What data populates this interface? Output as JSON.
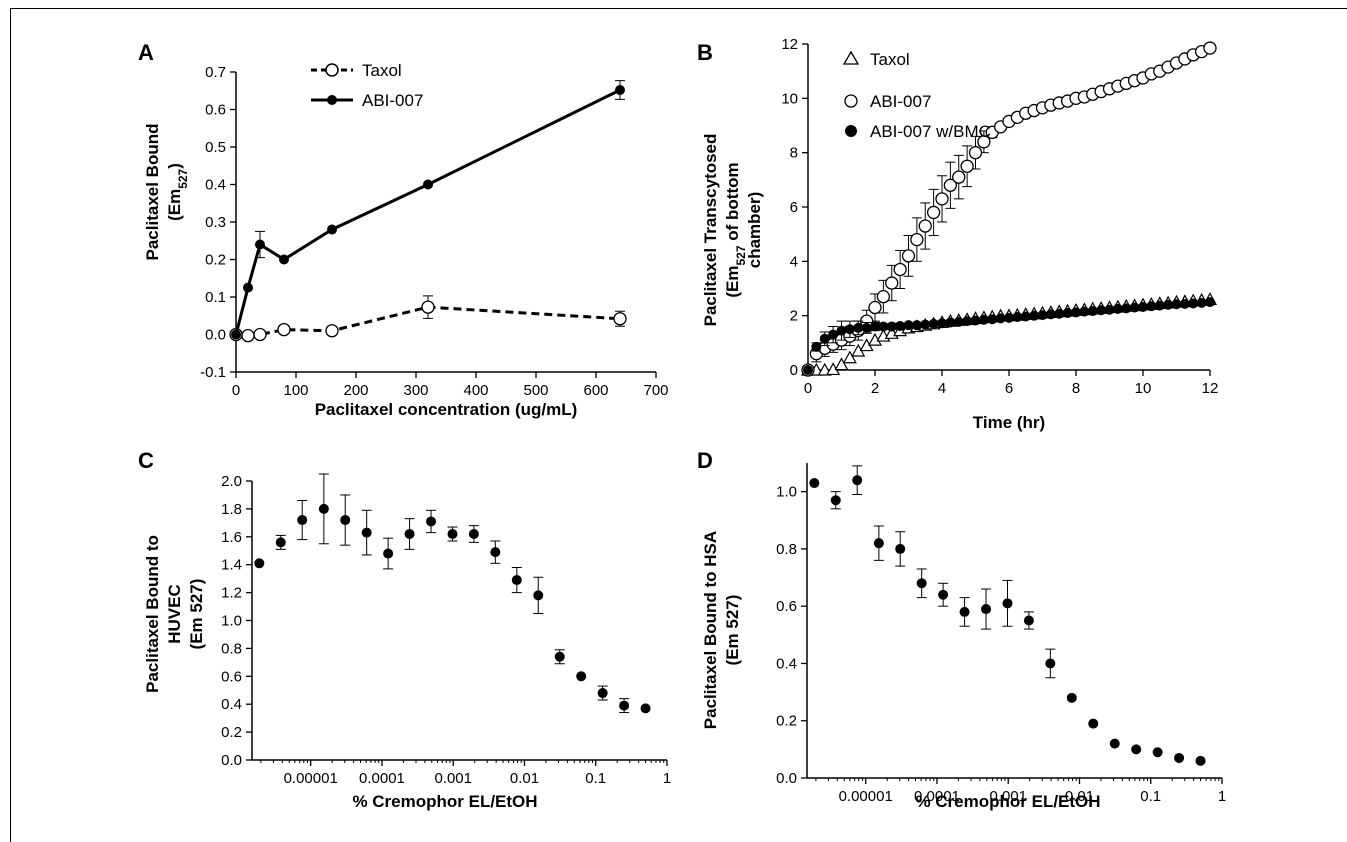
{
  "chart_data": [
    {
      "panel": "A",
      "type": "line",
      "xlabel": "Paclitaxel concentration (ug/mL)",
      "ylabel_line1": "Paclitaxel Bound",
      "ylabel_line2": "(Em",
      "ylabel_sub": "527",
      "ylabel_close": ")",
      "xlim": [
        0,
        700
      ],
      "ylim": [
        -0.1,
        0.7
      ],
      "xticks": [
        0,
        100,
        200,
        300,
        400,
        500,
        600,
        700
      ],
      "yticks": [
        -0.1,
        0.0,
        0.1,
        0.2,
        0.3,
        0.4,
        0.5,
        0.6,
        0.7
      ],
      "ytick_labels": [
        "-0.1",
        "0.0",
        "0.1",
        "0.2",
        "0.3",
        "0.4",
        "0.5",
        "0.6",
        "0.7"
      ],
      "legend_position": "top-left",
      "series": [
        {
          "name": "Taxol",
          "style": "dashed-open-circle",
          "x": [
            0,
            20,
            40,
            80,
            160,
            320,
            640
          ],
          "y": [
            0.0,
            -0.003,
            0.0,
            0.013,
            0.01,
            0.073,
            0.042
          ],
          "err": [
            0,
            0,
            0,
            0,
            0,
            0.03,
            0.02
          ]
        },
        {
          "name": "ABI-007",
          "style": "solid-filled-circle",
          "x": [
            0,
            20,
            40,
            80,
            160,
            320,
            640
          ],
          "y": [
            0.0,
            0.125,
            0.24,
            0.2,
            0.28,
            0.4,
            0.652
          ],
          "err": [
            0,
            0,
            0.035,
            0,
            0,
            0,
            0.025
          ]
        }
      ]
    },
    {
      "panel": "B",
      "type": "scatter",
      "xlabel": "Time (hr)",
      "ylabel_line1": "Paclitaxel Transcytosed",
      "ylabel_line2": "(Em",
      "ylabel_sub": "527",
      "ylabel_line2_rest": " of bottom",
      "ylabel_line3": "chamber)",
      "xlim": [
        0,
        12
      ],
      "ylim": [
        0,
        12
      ],
      "xticks": [
        0,
        2,
        4,
        6,
        8,
        10,
        12
      ],
      "yticks": [
        0,
        2,
        4,
        6,
        8,
        10,
        12
      ],
      "legend_position": "top-left",
      "series": [
        {
          "name": "Taxol",
          "marker": "open-triangle",
          "x": [
            0,
            0.25,
            0.5,
            0.75,
            1,
            1.25,
            1.5,
            1.75,
            2,
            2.25,
            2.5,
            2.75,
            3,
            3.25,
            3.5,
            3.75,
            4,
            4.25,
            4.5,
            4.75,
            5,
            5.25,
            5.5,
            5.75,
            6,
            6.25,
            6.5,
            6.75,
            7,
            7.25,
            7.5,
            7.75,
            8,
            8.25,
            8.5,
            8.75,
            9,
            9.25,
            9.5,
            9.75,
            10,
            10.25,
            10.5,
            10.75,
            11,
            11.25,
            11.5,
            11.75,
            12
          ],
          "y": [
            0,
            0,
            0,
            0.02,
            0.2,
            0.45,
            0.7,
            0.9,
            1.1,
            1.25,
            1.35,
            1.45,
            1.55,
            1.6,
            1.65,
            1.7,
            1.75,
            1.8,
            1.83,
            1.86,
            1.9,
            1.93,
            1.96,
            1.99,
            2.0,
            2.02,
            2.05,
            2.07,
            2.1,
            2.12,
            2.15,
            2.17,
            2.2,
            2.22,
            2.25,
            2.27,
            2.3,
            2.32,
            2.35,
            2.37,
            2.4,
            2.42,
            2.45,
            2.47,
            2.5,
            2.52,
            2.55,
            2.57,
            2.6
          ]
        },
        {
          "name": "ABI-007",
          "marker": "open-circle",
          "x": [
            0,
            0.25,
            0.5,
            0.75,
            1,
            1.25,
            1.5,
            1.75,
            2,
            2.25,
            2.5,
            2.75,
            3,
            3.25,
            3.5,
            3.75,
            4,
            4.25,
            4.5,
            4.75,
            5,
            5.25,
            5.5,
            5.75,
            6,
            6.25,
            6.5,
            6.75,
            7,
            7.25,
            7.5,
            7.75,
            8,
            8.25,
            8.5,
            8.75,
            9,
            9.25,
            9.5,
            9.75,
            10,
            10.25,
            10.5,
            10.75,
            11,
            11.25,
            11.5,
            11.75,
            12
          ],
          "y": [
            0,
            0.6,
            0.8,
            0.95,
            1.1,
            1.25,
            1.45,
            1.8,
            2.3,
            2.7,
            3.2,
            3.7,
            4.2,
            4.8,
            5.3,
            5.8,
            6.3,
            6.8,
            7.1,
            7.5,
            8.0,
            8.4,
            8.75,
            8.95,
            9.15,
            9.3,
            9.45,
            9.55,
            9.65,
            9.75,
            9.83,
            9.9,
            10.0,
            10.05,
            10.15,
            10.25,
            10.35,
            10.45,
            10.55,
            10.65,
            10.75,
            10.9,
            11.0,
            11.15,
            11.3,
            11.45,
            11.6,
            11.72,
            11.85
          ],
          "err": [
            0,
            0.3,
            0.3,
            0.3,
            0.35,
            0.35,
            0.35,
            0.4,
            0.5,
            0.6,
            0.65,
            0.7,
            0.75,
            0.8,
            0.85,
            0.85,
            0.85,
            0.85,
            0.8,
            0.75,
            0.6,
            0.4,
            0.2,
            0.1,
            0,
            0,
            0,
            0,
            0,
            0,
            0,
            0,
            0,
            0,
            0,
            0,
            0,
            0,
            0,
            0,
            0,
            0,
            0,
            0,
            0,
            0,
            0,
            0,
            0
          ]
        },
        {
          "name": "ABI-007 w/BMC",
          "marker": "filled-circle",
          "x": [
            0,
            0.25,
            0.5,
            0.75,
            1,
            1.25,
            1.5,
            1.75,
            2,
            2.25,
            2.5,
            2.75,
            3,
            3.25,
            3.5,
            3.75,
            4,
            4.25,
            4.5,
            4.75,
            5,
            5.25,
            5.5,
            5.75,
            6,
            6.25,
            6.5,
            6.75,
            7,
            7.25,
            7.5,
            7.75,
            8,
            8.25,
            8.5,
            8.75,
            9,
            9.25,
            9.5,
            9.75,
            10,
            10.25,
            10.5,
            10.75,
            11,
            11.25,
            11.5,
            11.75,
            12
          ],
          "y": [
            0,
            0.85,
            1.15,
            1.3,
            1.45,
            1.5,
            1.55,
            1.55,
            1.6,
            1.6,
            1.6,
            1.62,
            1.65,
            1.65,
            1.67,
            1.7,
            1.72,
            1.75,
            1.77,
            1.8,
            1.82,
            1.85,
            1.87,
            1.9,
            1.92,
            1.95,
            1.97,
            2.0,
            2.02,
            2.05,
            2.07,
            2.1,
            2.12,
            2.15,
            2.17,
            2.2,
            2.22,
            2.25,
            2.27,
            2.3,
            2.32,
            2.35,
            2.37,
            2.4,
            2.42,
            2.43,
            2.45,
            2.47,
            2.5
          ],
          "err": [
            0,
            0.15,
            0.25,
            0.3,
            0.35,
            0.3,
            0.25,
            0.2,
            0.15,
            0.1,
            0.1,
            0.1,
            0,
            0,
            0,
            0,
            0,
            0,
            0,
            0,
            0,
            0,
            0,
            0,
            0,
            0,
            0,
            0,
            0,
            0,
            0,
            0,
            0,
            0,
            0,
            0,
            0,
            0,
            0,
            0,
            0,
            0,
            0,
            0,
            0,
            0,
            0,
            0,
            0
          ]
        }
      ]
    },
    {
      "panel": "C",
      "type": "scatter",
      "xscale": "log",
      "xlabel": "% Cremophor EL/EtOH",
      "ylabel_line1": "Paclitaxel Bound to",
      "ylabel_line2": "HUVEC",
      "ylabel_line3": "(Em 527)",
      "xlim": [
        1.5e-06,
        1
      ],
      "ylim": [
        0,
        2.0
      ],
      "xticks": [
        1e-05,
        0.0001,
        0.001,
        0.01,
        0.1,
        1
      ],
      "xtick_labels": [
        "0.00001",
        "0.0001",
        "0.001",
        "0.01",
        "0.1",
        "1"
      ],
      "yticks": [
        0,
        0.2,
        0.4,
        0.6,
        0.8,
        1.0,
        1.2,
        1.4,
        1.6,
        1.8,
        2.0
      ],
      "ytick_labels": [
        "0.0",
        "0.2",
        "0.4",
        "0.6",
        "0.8",
        "1.0",
        "1.2",
        "1.4",
        "1.6",
        "1.8",
        "2.0"
      ],
      "series": [
        {
          "marker": "filled-circle",
          "x": [
            1.9e-06,
            3.8e-06,
            7.6e-06,
            1.53e-05,
            3.05e-05,
            6.1e-05,
            0.000122,
            0.000244,
            0.000488,
            0.000977,
            0.00195,
            0.0039,
            0.0078,
            0.0156,
            0.03125,
            0.0625,
            0.125,
            0.25,
            0.5
          ],
          "y": [
            1.41,
            1.56,
            1.72,
            1.8,
            1.72,
            1.63,
            1.48,
            1.62,
            1.71,
            1.62,
            1.62,
            1.49,
            1.29,
            1.18,
            0.74,
            0.6,
            0.48,
            0.39,
            0.37
          ],
          "err": [
            0,
            0.05,
            0.14,
            0.25,
            0.18,
            0.16,
            0.11,
            0.11,
            0.08,
            0.05,
            0.06,
            0.08,
            0.09,
            0.13,
            0.05,
            0,
            0.05,
            0.05,
            0
          ]
        }
      ]
    },
    {
      "panel": "D",
      "type": "scatter",
      "xscale": "log",
      "xlabel": "% Cremophor EL/EtOH",
      "ylabel_line1": "Paclitaxel Bound to HSA",
      "ylabel_line2": "(Em 527)",
      "xlim": [
        1.5e-06,
        1
      ],
      "ylim": [
        0,
        1.1
      ],
      "xticks": [
        1e-05,
        0.0001,
        0.001,
        0.01,
        0.1,
        1
      ],
      "xtick_labels": [
        "0.00001",
        "0.0001",
        "0.001",
        "0.01",
        "0.1",
        "1"
      ],
      "yticks": [
        0,
        0.2,
        0.4,
        0.6,
        0.8,
        1.0
      ],
      "ytick_labels": [
        "0.0",
        "0.2",
        "0.4",
        "0.6",
        "0.8",
        "1.0"
      ],
      "series": [
        {
          "marker": "filled-circle",
          "x": [
            1.9e-06,
            3.8e-06,
            7.6e-06,
            1.53e-05,
            3.05e-05,
            6.1e-05,
            0.000122,
            0.000244,
            0.000488,
            0.000977,
            0.00195,
            0.0039,
            0.0078,
            0.0156,
            0.03125,
            0.0625,
            0.125,
            0.25,
            0.5
          ],
          "y": [
            1.03,
            0.97,
            1.04,
            0.82,
            0.8,
            0.68,
            0.64,
            0.58,
            0.59,
            0.61,
            0.55,
            0.4,
            0.28,
            0.19,
            0.12,
            0.1,
            0.09,
            0.07,
            0.06
          ],
          "err": [
            0,
            0.03,
            0.05,
            0.06,
            0.06,
            0.05,
            0.04,
            0.05,
            0.07,
            0.08,
            0.03,
            0.05,
            0,
            0,
            0,
            0,
            0,
            0,
            0
          ]
        }
      ]
    }
  ]
}
